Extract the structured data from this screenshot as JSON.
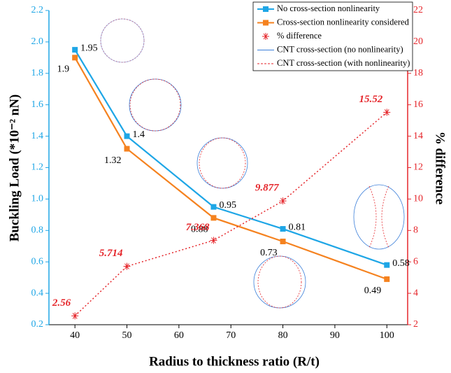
{
  "chart_data": {
    "type": "line",
    "x_label": "Radius to thickness ratio (R/t)",
    "y_label": "Buckling Load (*10⁻² nN)",
    "y2_label": "% difference",
    "x": [
      40,
      50,
      66.67,
      80,
      100
    ],
    "xlim": [
      35,
      104
    ],
    "xticks": [
      40,
      50,
      60,
      70,
      80,
      90,
      100
    ],
    "ylim": [
      0.2,
      2.2
    ],
    "yticks": [
      0.2,
      0.4,
      0.6,
      0.8,
      {
        "value": 1.0,
        "label": "1.0"
      },
      1.2,
      1.4,
      1.6,
      1.8,
      {
        "value": 2.0,
        "label": "2.0"
      },
      2.2
    ],
    "y2lim": [
      2,
      22
    ],
    "y2ticks": [
      2,
      4,
      6,
      8,
      10,
      12,
      14,
      16,
      18,
      20,
      22
    ],
    "y_color": "#1ea6e6",
    "y2_color": "#e5262b",
    "series": [
      {
        "name": "No cross-section nonlinearity",
        "color": "#1ea6e6",
        "marker": "square",
        "values": [
          1.95,
          1.4,
          0.95,
          0.81,
          0.58
        ]
      },
      {
        "name": "Cross-section nonlinearity considered",
        "color": "#f5821f",
        "marker": "square",
        "values": [
          1.9,
          1.32,
          0.88,
          0.73,
          0.49
        ]
      },
      {
        "name": "% difference",
        "color": "#e5262b",
        "marker": "asterisk",
        "axis": "y2",
        "dotted": true,
        "values": [
          2.56,
          5.714,
          7.368,
          9.877,
          15.52
        ]
      }
    ],
    "legend_items": [
      {
        "name": "CNT cross-section (no nonlinearity)",
        "color": "#3b7fd9"
      },
      {
        "name": "CNT cross-section (with nonlinearity)",
        "color": "#e5262b"
      }
    ]
  }
}
